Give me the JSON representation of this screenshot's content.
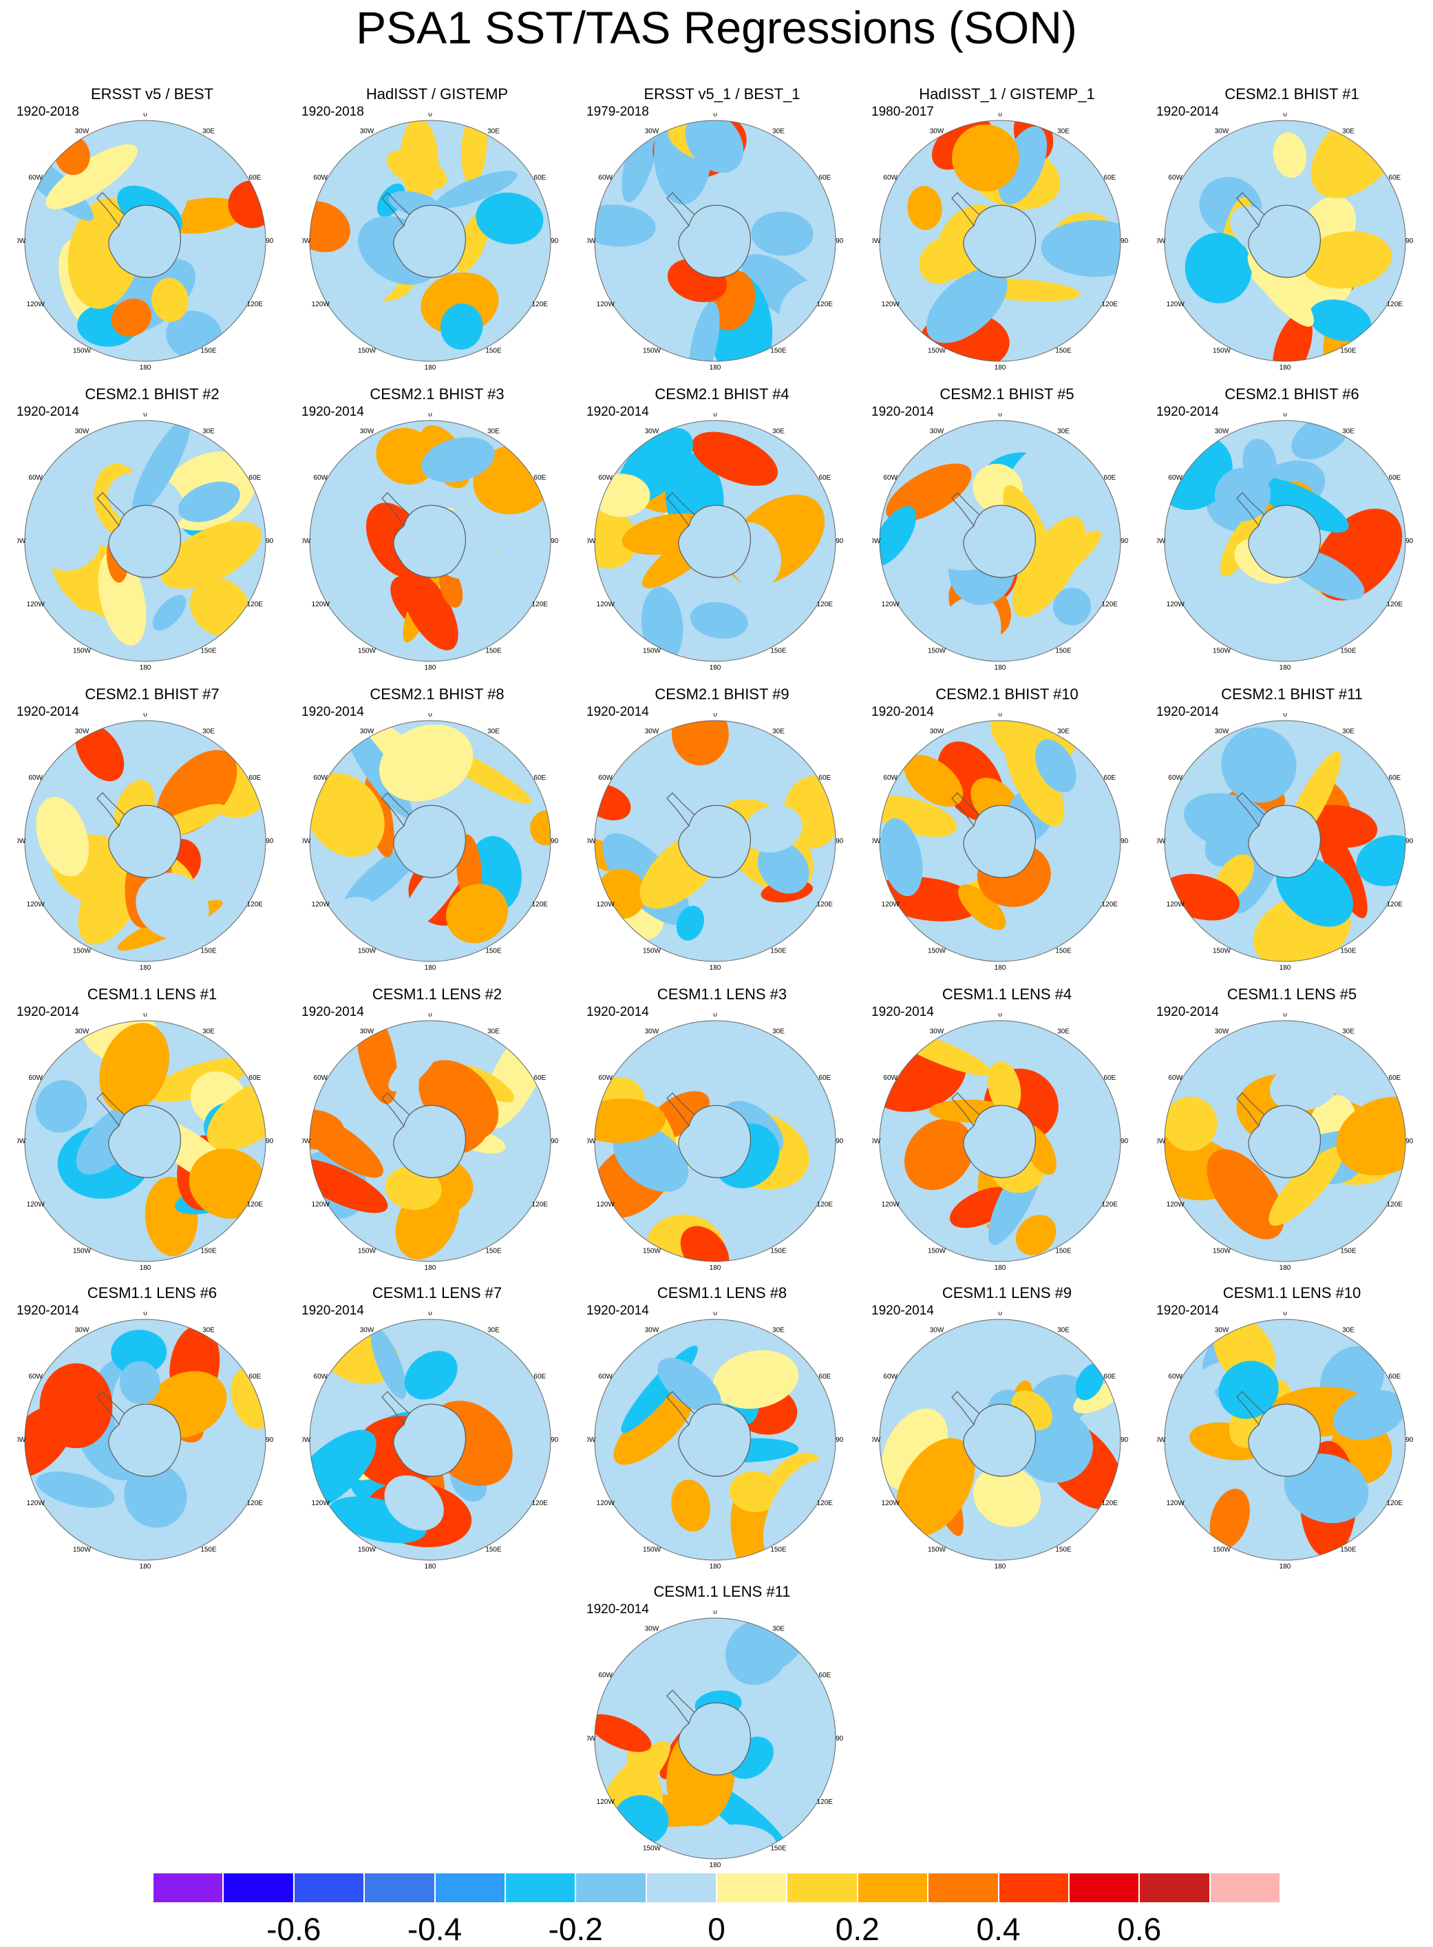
{
  "title": "PSA1 SST/TAS Regressions (SON)",
  "lon_labels": [
    "0",
    "30E",
    "60E",
    "90E",
    "120E",
    "150E",
    "180",
    "150W",
    "120W",
    "90W",
    "60W",
    "30W"
  ],
  "colorbar": {
    "colors": [
      "#8a1cf2",
      "#1e00ff",
      "#2f52f6",
      "#3a78ee",
      "#2f9cf7",
      "#19c4f5",
      "#7ac7f2",
      "#b4dcf2",
      "#fff495",
      "#ffd530",
      "#ffab00",
      "#ff7800",
      "#ff3c00",
      "#e6000a",
      "#c81e1e",
      "#ffb4b4"
    ],
    "labels": [
      "-0.6",
      "-0.4",
      "-0.2",
      "0",
      "0.2",
      "0.4",
      "0.6"
    ],
    "label_values": [
      -0.6,
      -0.4,
      -0.2,
      0,
      0.2,
      0.4,
      0.6
    ],
    "levels": [
      -0.7,
      -0.6,
      -0.5,
      -0.4,
      -0.3,
      -0.2,
      -0.1,
      0,
      0.1,
      0.2,
      0.3,
      0.4,
      0.5,
      0.6,
      0.7
    ]
  },
  "chart_data": [
    {
      "type": "heatmap",
      "title": "ERSST v5 / BEST",
      "period": "1920-2018"
    },
    {
      "type": "heatmap",
      "title": "HadISST / GISTEMP",
      "period": "1920-2018"
    },
    {
      "type": "heatmap",
      "title": "ERSST v5_1 / BEST_1",
      "period": "1979-2018"
    },
    {
      "type": "heatmap",
      "title": "HadISST_1 / GISTEMP_1",
      "period": "1980-2017"
    },
    {
      "type": "heatmap",
      "title": "CESM2.1 BHIST #1",
      "period": "1920-2014"
    },
    {
      "type": "heatmap",
      "title": "CESM2.1 BHIST #2",
      "period": "1920-2014"
    },
    {
      "type": "heatmap",
      "title": "CESM2.1 BHIST #3",
      "period": "1920-2014"
    },
    {
      "type": "heatmap",
      "title": "CESM2.1 BHIST #4",
      "period": "1920-2014"
    },
    {
      "type": "heatmap",
      "title": "CESM2.1 BHIST #5",
      "period": "1920-2014"
    },
    {
      "type": "heatmap",
      "title": "CESM2.1 BHIST #6",
      "period": "1920-2014"
    },
    {
      "type": "heatmap",
      "title": "CESM2.1 BHIST #7",
      "period": "1920-2014"
    },
    {
      "type": "heatmap",
      "title": "CESM2.1 BHIST #8",
      "period": "1920-2014"
    },
    {
      "type": "heatmap",
      "title": "CESM2.1 BHIST #9",
      "period": "1920-2014"
    },
    {
      "type": "heatmap",
      "title": "CESM2.1 BHIST #10",
      "period": "1920-2014"
    },
    {
      "type": "heatmap",
      "title": "CESM2.1 BHIST #11",
      "period": "1920-2014"
    },
    {
      "type": "heatmap",
      "title": "CESM1.1 LENS #1",
      "period": "1920-2014"
    },
    {
      "type": "heatmap",
      "title": "CESM1.1 LENS #2",
      "period": "1920-2014"
    },
    {
      "type": "heatmap",
      "title": "CESM1.1 LENS #3",
      "period": "1920-2014"
    },
    {
      "type": "heatmap",
      "title": "CESM1.1 LENS #4",
      "period": "1920-2014"
    },
    {
      "type": "heatmap",
      "title": "CESM1.1 LENS #5",
      "period": "1920-2014"
    },
    {
      "type": "heatmap",
      "title": "CESM1.1 LENS #6",
      "period": "1920-2014"
    },
    {
      "type": "heatmap",
      "title": "CESM1.1 LENS #7",
      "period": "1920-2014"
    },
    {
      "type": "heatmap",
      "title": "CESM1.1 LENS #8",
      "period": "1920-2014"
    },
    {
      "type": "heatmap",
      "title": "CESM1.1 LENS #9",
      "period": "1920-2014"
    },
    {
      "type": "heatmap",
      "title": "CESM1.1 LENS #10",
      "period": "1920-2014"
    },
    {
      "type": "heatmap",
      "title": "CESM1.1 LENS #11",
      "period": "1920-2014"
    }
  ]
}
